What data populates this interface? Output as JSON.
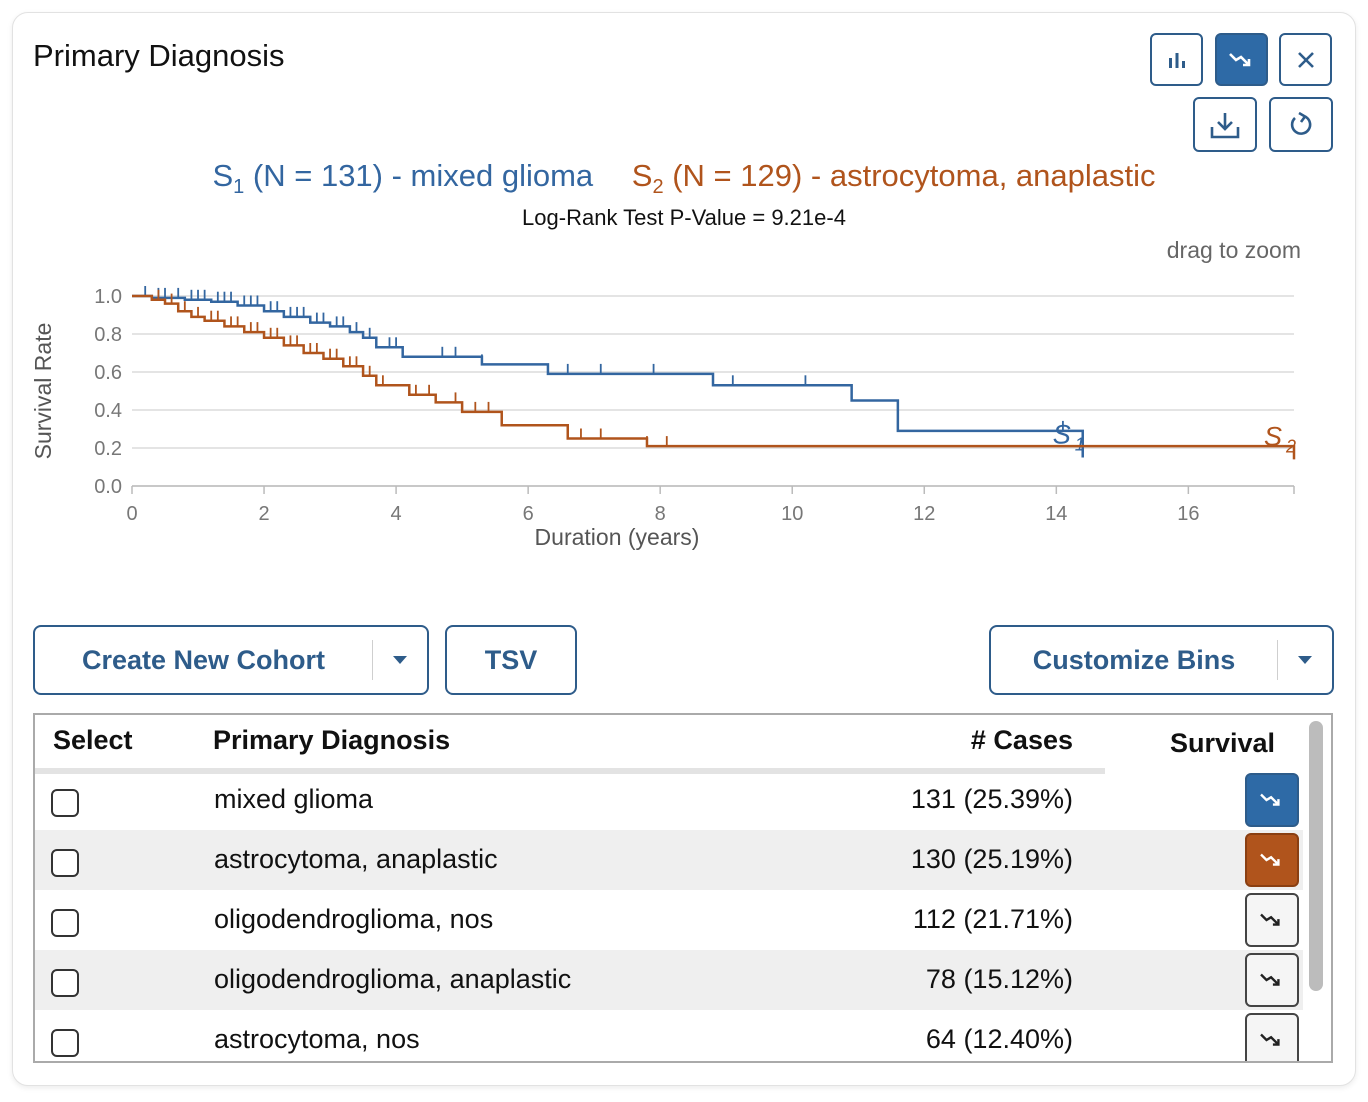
{
  "panel": {
    "title": "Primary Diagnosis",
    "toolbar": {
      "chart_icon": "bar-chart-icon",
      "survival_icon": "survival-trend-icon",
      "close_icon": "close-icon",
      "download_icon": "download-icon",
      "reset_icon": "reset-icon"
    }
  },
  "chart_data": {
    "type": "line",
    "legend": {
      "s1_sub": "1",
      "s1_label": " (N = 131) - mixed glioma",
      "s2_sub": "2",
      "s2_label": " (N = 129) - astrocytoma, anaplastic"
    },
    "subtitle": "Log-Rank Test P-Value = 9.21e-4",
    "hint": "drag to zoom",
    "xlabel": "Duration (years)",
    "ylabel": "Survival Rate",
    "xlim": [
      0,
      17.6
    ],
    "ylim": [
      0,
      1.0
    ],
    "xticks": [
      0,
      2,
      4,
      6,
      8,
      10,
      12,
      14,
      16
    ],
    "yticks": [
      0.0,
      0.2,
      0.4,
      0.6,
      0.8,
      1.0
    ],
    "grid": true,
    "series": [
      {
        "name": "S1",
        "color": "#3366a0",
        "end_label": "S",
        "end_sub": "1",
        "steps": [
          [
            0,
            1.0
          ],
          [
            0.3,
            0.99
          ],
          [
            0.8,
            0.98
          ],
          [
            1.2,
            0.97
          ],
          [
            1.6,
            0.95
          ],
          [
            2.0,
            0.92
          ],
          [
            2.3,
            0.89
          ],
          [
            2.7,
            0.86
          ],
          [
            3.0,
            0.84
          ],
          [
            3.3,
            0.81
          ],
          [
            3.5,
            0.78
          ],
          [
            3.7,
            0.73
          ],
          [
            4.1,
            0.68
          ],
          [
            5.3,
            0.64
          ],
          [
            6.3,
            0.59
          ],
          [
            8.8,
            0.53
          ],
          [
            10.9,
            0.45
          ],
          [
            11.6,
            0.29
          ],
          [
            14.4,
            0.15
          ]
        ],
        "end_x": 14.4,
        "censors": [
          0.2,
          0.4,
          0.5,
          0.7,
          0.9,
          1.0,
          1.1,
          1.3,
          1.4,
          1.5,
          1.7,
          1.8,
          1.9,
          2.1,
          2.2,
          2.4,
          2.5,
          2.6,
          2.8,
          2.9,
          3.1,
          3.2,
          3.4,
          3.6,
          3.9,
          4.0,
          4.7,
          4.9,
          5.3,
          6.6,
          7.1,
          7.9,
          8.8,
          9.1,
          10.2,
          11.6,
          14.1,
          14.4
        ]
      },
      {
        "name": "S2",
        "color": "#b0541c",
        "end_label": "S",
        "end_sub": "2",
        "steps": [
          [
            0,
            1.0
          ],
          [
            0.3,
            0.98
          ],
          [
            0.5,
            0.96
          ],
          [
            0.7,
            0.92
          ],
          [
            0.9,
            0.89
          ],
          [
            1.1,
            0.87
          ],
          [
            1.4,
            0.84
          ],
          [
            1.7,
            0.81
          ],
          [
            2.0,
            0.78
          ],
          [
            2.3,
            0.74
          ],
          [
            2.6,
            0.7
          ],
          [
            2.9,
            0.67
          ],
          [
            3.2,
            0.63
          ],
          [
            3.5,
            0.58
          ],
          [
            3.7,
            0.53
          ],
          [
            4.2,
            0.48
          ],
          [
            4.6,
            0.44
          ],
          [
            5.0,
            0.39
          ],
          [
            5.6,
            0.32
          ],
          [
            6.6,
            0.25
          ],
          [
            7.8,
            0.21
          ],
          [
            17.6,
            0.14
          ]
        ],
        "end_x": 17.6,
        "censors": [
          0.4,
          0.6,
          0.8,
          1.0,
          1.2,
          1.3,
          1.5,
          1.6,
          1.8,
          1.9,
          2.1,
          2.2,
          2.4,
          2.5,
          2.7,
          2.8,
          3.0,
          3.1,
          3.3,
          3.4,
          3.6,
          3.8,
          4.3,
          4.5,
          4.9,
          5.2,
          5.4,
          5.6,
          6.6,
          6.8,
          7.1,
          7.8,
          8.1
        ]
      }
    ]
  },
  "actions": {
    "create_cohort": "Create New Cohort",
    "tsv": "TSV",
    "customize_bins": "Customize Bins"
  },
  "table": {
    "headers": {
      "select": "Select",
      "diagnosis": "Primary Diagnosis",
      "cases": "# Cases",
      "survival": "Survival"
    },
    "rows": [
      {
        "name": "mixed glioma",
        "cases": "131 (25.39%)",
        "survival": "s1"
      },
      {
        "name": "astrocytoma, anaplastic",
        "cases": "130 (25.19%)",
        "survival": "s2"
      },
      {
        "name": "oligodendroglioma, nos",
        "cases": "112 (21.71%)",
        "survival": "none"
      },
      {
        "name": "oligodendroglioma, anaplastic",
        "cases": "78 (15.12%)",
        "survival": "none"
      },
      {
        "name": "astrocytoma, nos",
        "cases": "64 (12.40%)",
        "survival": "none"
      }
    ]
  }
}
